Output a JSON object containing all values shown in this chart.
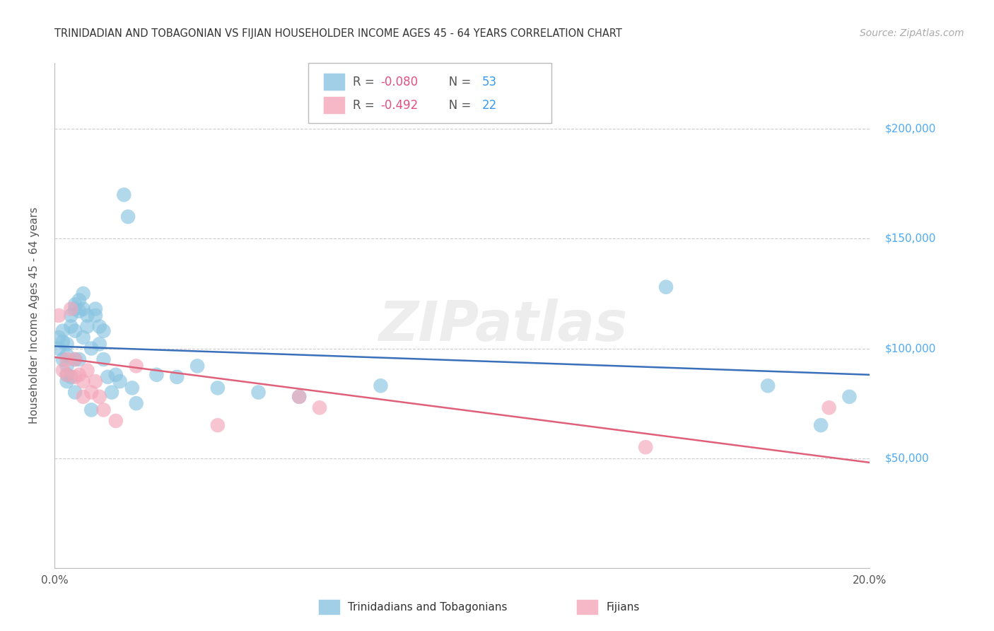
{
  "title": "TRINIDADIAN AND TOBAGONIAN VS FIJIAN HOUSEHOLDER INCOME AGES 45 - 64 YEARS CORRELATION CHART",
  "source": "Source: ZipAtlas.com",
  "ylabel": "Householder Income Ages 45 - 64 years",
  "xlim": [
    0.0,
    0.2
  ],
  "ylim": [
    0,
    230000
  ],
  "yticks": [
    0,
    50000,
    100000,
    150000,
    200000
  ],
  "ytick_labels": [
    "",
    "$50,000",
    "$100,000",
    "$150,000",
    "$200,000"
  ],
  "xticks": [
    0.0,
    0.025,
    0.05,
    0.075,
    0.1,
    0.125,
    0.15,
    0.175,
    0.2
  ],
  "xtick_labels": [
    "0.0%",
    "",
    "",
    "",
    "",
    "",
    "",
    "",
    "20.0%"
  ],
  "legend_R1": "-0.080",
  "legend_N1": "53",
  "legend_R2": "-0.492",
  "legend_N2": "22",
  "color_blue": "#89c4e1",
  "color_pink": "#f4a7b9",
  "line_color_blue": "#3a6fba",
  "line_color_pink": "#e0607a",
  "watermark": "ZIPatlas",
  "background_color": "#ffffff",
  "grid_color": "#cccccc",
  "title_color": "#333333",
  "right_label_color": "#4dabf7",
  "scatter_blue_x": [
    0.001,
    0.001,
    0.002,
    0.002,
    0.002,
    0.003,
    0.003,
    0.003,
    0.003,
    0.003,
    0.004,
    0.004,
    0.004,
    0.005,
    0.005,
    0.005,
    0.005,
    0.005,
    0.006,
    0.006,
    0.006,
    0.007,
    0.007,
    0.007,
    0.008,
    0.008,
    0.009,
    0.009,
    0.01,
    0.01,
    0.011,
    0.011,
    0.012,
    0.012,
    0.013,
    0.014,
    0.015,
    0.016,
    0.017,
    0.018,
    0.019,
    0.02,
    0.025,
    0.03,
    0.035,
    0.04,
    0.05,
    0.06,
    0.08,
    0.15,
    0.175,
    0.188,
    0.195
  ],
  "scatter_blue_y": [
    105000,
    100000,
    108000,
    103000,
    95000,
    102000,
    97000,
    92000,
    88000,
    85000,
    115000,
    110000,
    87000,
    120000,
    118000,
    108000,
    95000,
    80000,
    122000,
    117000,
    95000,
    125000,
    118000,
    105000,
    115000,
    110000,
    100000,
    72000,
    118000,
    115000,
    110000,
    102000,
    108000,
    95000,
    87000,
    80000,
    88000,
    85000,
    170000,
    160000,
    82000,
    75000,
    88000,
    87000,
    92000,
    82000,
    80000,
    78000,
    83000,
    128000,
    83000,
    65000,
    78000
  ],
  "scatter_pink_x": [
    0.001,
    0.002,
    0.003,
    0.003,
    0.004,
    0.005,
    0.005,
    0.006,
    0.007,
    0.007,
    0.008,
    0.009,
    0.01,
    0.011,
    0.012,
    0.015,
    0.02,
    0.04,
    0.06,
    0.065,
    0.145,
    0.19
  ],
  "scatter_pink_y": [
    115000,
    90000,
    95000,
    88000,
    118000,
    95000,
    87000,
    88000,
    85000,
    78000,
    90000,
    80000,
    85000,
    78000,
    72000,
    67000,
    92000,
    65000,
    78000,
    73000,
    55000,
    73000
  ],
  "blue_trend_x": [
    0.0,
    0.2
  ],
  "blue_trend_y": [
    101000,
    88000
  ],
  "pink_trend_x": [
    0.0,
    0.2
  ],
  "pink_trend_y": [
    96000,
    48000
  ]
}
